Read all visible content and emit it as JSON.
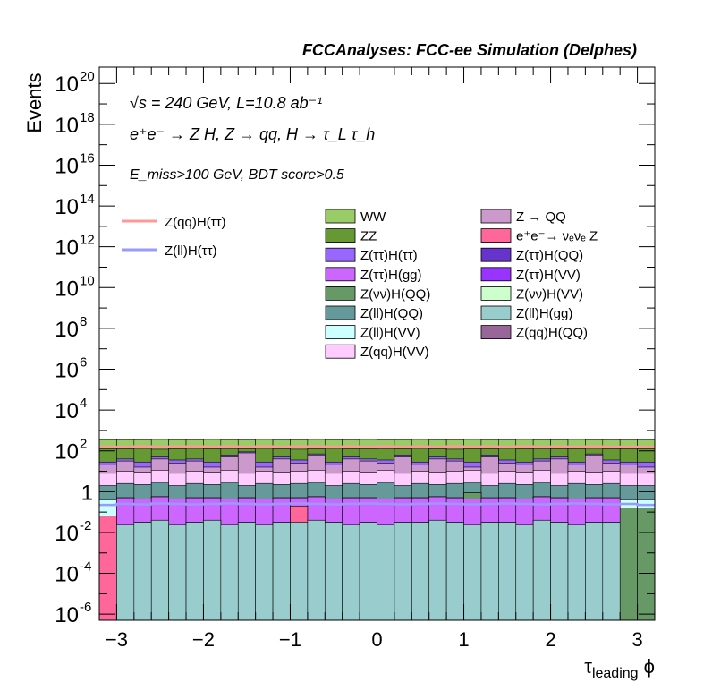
{
  "chart_data": {
    "type": "area",
    "title": "FCCAnalyses: FCC-ee Simulation (Delphes)",
    "xlabel": "τ_leading ϕ",
    "ylabel": "Events",
    "y_scale": "log",
    "xlim": [
      -3.2,
      3.2
    ],
    "ylim_log10": [
      -6.3,
      20.8
    ],
    "x_ticks": [
      -3,
      -2,
      -1,
      0,
      1,
      2,
      3
    ],
    "y_ticks": [
      {
        "exp": -6,
        "label": "10",
        "sup": "-6"
      },
      {
        "exp": -4,
        "label": "10",
        "sup": "-4"
      },
      {
        "exp": -2,
        "label": "10",
        "sup": "-2"
      },
      {
        "exp": 0,
        "label": "1",
        "sup": ""
      },
      {
        "exp": 2,
        "label": "10",
        "sup": "2"
      },
      {
        "exp": 4,
        "label": "10",
        "sup": "4"
      },
      {
        "exp": 6,
        "label": "10",
        "sup": "6"
      },
      {
        "exp": 8,
        "label": "10",
        "sup": "8"
      },
      {
        "exp": 10,
        "label": "10",
        "sup": "10"
      },
      {
        "exp": 12,
        "label": "10",
        "sup": "12"
      },
      {
        "exp": 14,
        "label": "10",
        "sup": "14"
      },
      {
        "exp": 16,
        "label": "10",
        "sup": "16"
      },
      {
        "exp": 18,
        "label": "10",
        "sup": "18"
      },
      {
        "exp": 20,
        "label": "10",
        "sup": "20"
      }
    ],
    "bins": 32,
    "annotations": [
      "√s = 240 GeV, L=10.8 ab⁻¹",
      "e⁺e⁻ → Z H, Z → qq, H → τ_L τ_h",
      "E_miss>100 GeV, BDT score>0.5"
    ],
    "stack_bounds_log10": [
      {
        "name": "Z(ll)H(gg)",
        "color": "#99cccc",
        "top": [
          -6.5,
          -1.6,
          -1.5,
          -1.4,
          -1.6,
          -1.5,
          -1.4,
          -1.6,
          -1.5,
          -1.6,
          -1.5,
          -1.5,
          -1.4,
          -1.5,
          -1.6,
          -1.5,
          -1.6,
          -1.5,
          -1.5,
          -1.4,
          -1.5,
          -1.6,
          -1.5,
          -1.5,
          -1.6,
          -1.4,
          -1.5,
          -1.6,
          -1.5,
          -1.5,
          -6.5,
          -6.5
        ]
      },
      {
        "name": "e⁺e⁻→ νₑνₑ Z",
        "color": "#ff6699",
        "top": [
          -1.2,
          -1.6,
          -1.5,
          -1.4,
          -1.6,
          -1.5,
          -1.4,
          -1.6,
          -1.5,
          -1.6,
          -1.5,
          -0.7,
          -1.4,
          -1.5,
          -1.6,
          -1.5,
          -1.6,
          -1.5,
          -1.5,
          -1.4,
          -1.5,
          -1.6,
          -1.5,
          -1.5,
          -1.6,
          -1.4,
          -1.5,
          -1.6,
          -1.5,
          -1.5,
          -6.5,
          -6.5
        ]
      },
      {
        "name": "Z(ττ)H(gg)",
        "color": "#cc66ff",
        "top": [
          -1.2,
          -0.3,
          -0.35,
          -0.25,
          -0.35,
          -0.3,
          -0.3,
          -0.35,
          -0.3,
          -0.35,
          -0.3,
          -0.3,
          -0.25,
          -0.35,
          -0.3,
          -0.3,
          -0.35,
          -0.3,
          -0.3,
          -0.25,
          -0.3,
          -0.35,
          -0.3,
          -0.3,
          -0.35,
          -0.25,
          -0.3,
          -0.35,
          -0.3,
          -0.3,
          -6.5,
          -6.5
        ]
      },
      {
        "name": "Z(qq)H(QQ)",
        "color": "#996699",
        "top": [
          -1.2,
          -0.3,
          -0.35,
          -0.25,
          -0.35,
          -0.3,
          -0.3,
          -0.35,
          -0.3,
          -0.35,
          -0.3,
          -0.3,
          -0.25,
          -0.35,
          -0.3,
          -0.3,
          -0.35,
          -0.3,
          -0.3,
          -0.25,
          -0.3,
          -0.35,
          -4.5,
          -0.3,
          -0.35,
          -0.25,
          -0.3,
          -0.35,
          -0.3,
          -0.3,
          -6.5,
          -6.5
        ]
      },
      {
        "name": "Z(νν)H(QQ)",
        "color": "#669966",
        "top": [
          -1.2,
          -0.3,
          -0.35,
          -0.25,
          -0.35,
          -0.3,
          -0.3,
          -0.35,
          -0.3,
          -0.35,
          -0.3,
          -0.3,
          -0.25,
          -0.35,
          -0.3,
          -0.3,
          -0.35,
          -0.3,
          -0.3,
          -0.25,
          -0.3,
          -0.05,
          -0.3,
          -0.3,
          -0.35,
          -0.25,
          -0.3,
          -0.35,
          -0.3,
          -0.3,
          -0.8,
          -0.8
        ]
      },
      {
        "name": "Z(ll)H(VV)",
        "color": "#ccffff",
        "top": [
          -0.4,
          -0.3,
          -0.35,
          -0.25,
          -0.35,
          -0.3,
          -0.3,
          -0.35,
          -0.3,
          -0.35,
          -0.3,
          -0.3,
          -0.25,
          -0.35,
          -0.3,
          -0.3,
          -0.35,
          -0.3,
          -0.3,
          -0.25,
          -0.3,
          -0.05,
          -0.3,
          -0.3,
          -0.35,
          -0.25,
          -0.3,
          -0.35,
          -0.3,
          -0.3,
          -0.4,
          -0.4
        ]
      },
      {
        "name": "Z(ll)H(QQ)",
        "color": "#669999",
        "top": [
          0.3,
          0.4,
          0.35,
          0.45,
          0.3,
          0.4,
          0.35,
          0.45,
          0.3,
          0.4,
          0.35,
          0.4,
          0.45,
          0.3,
          0.4,
          0.35,
          0.45,
          0.3,
          0.4,
          0.35,
          0.4,
          0.45,
          0.3,
          0.4,
          0.35,
          0.45,
          0.3,
          0.4,
          0.35,
          0.4,
          0.3,
          0.3
        ]
      },
      {
        "name": "Z(qq)H(VV)",
        "color": "#ffccff",
        "top": [
          0.9,
          1.0,
          0.95,
          1.05,
          0.9,
          1.0,
          0.95,
          1.05,
          0.9,
          1.0,
          0.95,
          1.0,
          1.05,
          0.9,
          1.0,
          0.95,
          1.05,
          0.9,
          1.0,
          0.95,
          1.0,
          1.05,
          0.9,
          1.0,
          0.95,
          1.05,
          0.9,
          1.0,
          0.95,
          1.0,
          0.9,
          0.9
        ]
      },
      {
        "name": "Z → QQ",
        "color": "#cc99cc",
        "top": [
          1.3,
          1.5,
          1.2,
          1.6,
          1.4,
          1.5,
          1.2,
          1.7,
          1.9,
          1.2,
          1.6,
          1.4,
          1.8,
          1.3,
          1.6,
          1.5,
          1.4,
          1.7,
          1.3,
          1.6,
          1.5,
          1.2,
          1.7,
          1.4,
          1.3,
          1.5,
          1.6,
          1.3,
          1.8,
          1.4,
          1.3,
          1.2
        ]
      },
      {
        "name": "Z(ττ)H(ττ)",
        "color": "#9966ff",
        "top": [
          1.45,
          1.6,
          1.45,
          1.7,
          1.55,
          1.6,
          1.45,
          1.8,
          1.95,
          1.45,
          1.7,
          1.55,
          1.85,
          1.45,
          1.7,
          1.6,
          1.55,
          1.8,
          1.45,
          1.7,
          1.6,
          1.45,
          1.8,
          1.55,
          1.45,
          1.6,
          1.7,
          1.45,
          1.85,
          1.55,
          1.45,
          1.45
        ]
      },
      {
        "name": "ZZ",
        "color": "#669933",
        "top": [
          2.1,
          2.1,
          2.12,
          2.08,
          2.1,
          2.12,
          2.1,
          2.09,
          2.1,
          2.12,
          2.1,
          2.08,
          2.1,
          2.12,
          2.1,
          2.1,
          2.09,
          2.1,
          2.12,
          2.1,
          2.08,
          2.1,
          2.1,
          2.12,
          2.1,
          2.09,
          2.1,
          2.1,
          2.12,
          2.1,
          2.1,
          2.1
        ]
      },
      {
        "name": "WW",
        "color": "#99cc66",
        "top": [
          2.55,
          2.55,
          2.55,
          2.56,
          2.55,
          2.55,
          2.56,
          2.55,
          2.55,
          2.56,
          2.55,
          2.55,
          2.56,
          2.55,
          2.55,
          2.56,
          2.55,
          2.55,
          2.56,
          2.55,
          2.55,
          2.56,
          2.55,
          2.55,
          2.56,
          2.55,
          2.55,
          2.56,
          2.55,
          2.55,
          2.55,
          2.55
        ]
      }
    ],
    "signal_lines": [
      {
        "name": "Z(qq)H(ττ)",
        "color": "#ff9999",
        "log10": [
          2.2,
          2.2,
          2.22,
          2.2,
          2.21,
          2.22,
          2.2,
          2.21,
          2.2,
          2.22,
          2.2,
          2.21,
          2.22,
          2.2,
          2.21,
          2.2,
          2.22,
          2.2,
          2.21,
          2.2,
          2.22,
          2.2,
          2.21,
          2.2,
          2.22,
          2.2,
          2.21,
          2.2,
          2.22,
          2.2,
          2.2,
          2.2
        ]
      },
      {
        "name": "Z(ll)H(ττ)",
        "color": "#9999ff",
        "log10": [
          -0.65,
          -0.6,
          -0.62,
          -0.58,
          -0.6,
          -0.62,
          -0.6,
          -0.58,
          -0.6,
          -0.62,
          -0.6,
          -0.58,
          -0.6,
          -0.62,
          -0.6,
          -0.58,
          -0.6,
          -0.62,
          -0.6,
          -0.58,
          -0.6,
          -0.62,
          -0.6,
          -0.58,
          -0.6,
          -0.62,
          -0.6,
          -0.58,
          -0.6,
          -0.62,
          -0.6,
          -0.65
        ]
      }
    ],
    "legend_signals": [
      {
        "name": "Z(qq)H(ττ)",
        "color": "#ff9999"
      },
      {
        "name": "Z(ll)H(ττ)",
        "color": "#9999ff"
      }
    ],
    "legend_backgrounds": [
      {
        "name": "WW",
        "color": "#99cc66"
      },
      {
        "name": "Z → QQ",
        "color": "#cc99cc"
      },
      {
        "name": "ZZ",
        "color": "#669933"
      },
      {
        "name": "e⁺e⁻→ νₑνₑ Z",
        "color": "#ff6699"
      },
      {
        "name": "Z(ττ)H(ττ)",
        "color": "#9966ff"
      },
      {
        "name": "Z(ττ)H(QQ)",
        "color": "#6633cc"
      },
      {
        "name": "Z(ττ)H(gg)",
        "color": "#cc66ff"
      },
      {
        "name": "Z(ττ)H(VV)",
        "color": "#9933ff"
      },
      {
        "name": "Z(νν)H(QQ)",
        "color": "#669966"
      },
      {
        "name": "Z(νν)H(VV)",
        "color": "#ccffcc"
      },
      {
        "name": "Z(ll)H(QQ)",
        "color": "#669999"
      },
      {
        "name": "Z(ll)H(gg)",
        "color": "#99cccc"
      },
      {
        "name": "Z(ll)H(VV)",
        "color": "#ccffff"
      },
      {
        "name": "Z(qq)H(QQ)",
        "color": "#996699"
      },
      {
        "name": "Z(qq)H(VV)",
        "color": "#ffccff"
      }
    ]
  }
}
